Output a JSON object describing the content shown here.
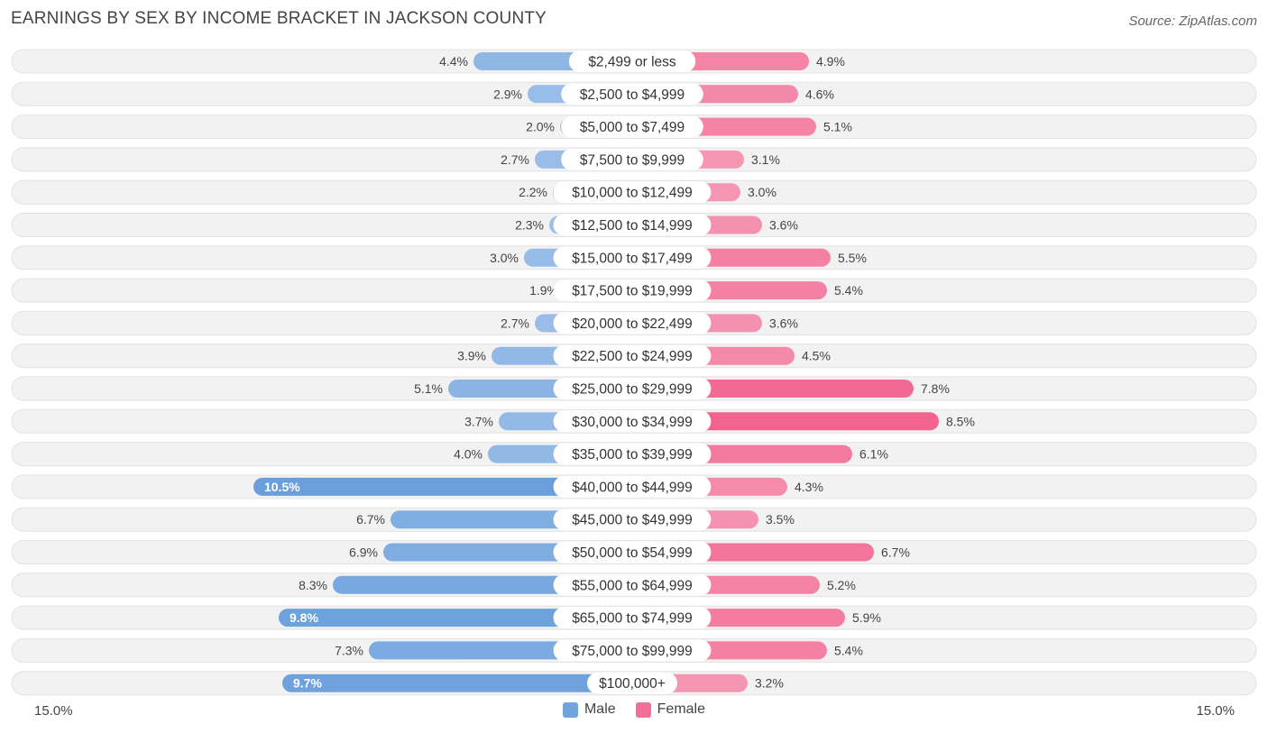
{
  "title": "EARNINGS BY SEX BY INCOME BRACKET IN JACKSON COUNTY",
  "source": "Source: ZipAtlas.com",
  "axis": {
    "left_label": "15.0%",
    "right_label": "15.0%"
  },
  "legend": {
    "male": {
      "label": "Male",
      "color": "#6fa4dd"
    },
    "female": {
      "label": "Female",
      "color": "#f07098"
    }
  },
  "chart_data": {
    "type": "bar",
    "orientation": "horizontal-diverging",
    "title": "EARNINGS BY SEX BY INCOME BRACKET IN JACKSON COUNTY",
    "xlim": [
      -15.0,
      15.0
    ],
    "unit": "%",
    "categories": [
      "$2,499 or less",
      "$2,500 to $4,999",
      "$5,000 to $7,499",
      "$7,500 to $9,999",
      "$10,000 to $12,499",
      "$12,500 to $14,999",
      "$15,000 to $17,499",
      "$17,500 to $19,999",
      "$20,000 to $22,499",
      "$22,500 to $24,999",
      "$25,000 to $29,999",
      "$30,000 to $34,999",
      "$35,000 to $39,999",
      "$40,000 to $44,999",
      "$45,000 to $49,999",
      "$50,000 to $54,999",
      "$55,000 to $64,999",
      "$65,000 to $74,999",
      "$75,000 to $99,999",
      "$100,000+"
    ],
    "series": [
      {
        "name": "Male",
        "values": [
          4.4,
          2.9,
          2.0,
          2.7,
          2.2,
          2.3,
          3.0,
          1.9,
          2.7,
          3.9,
          5.1,
          3.7,
          4.0,
          10.5,
          6.7,
          6.9,
          8.3,
          9.8,
          7.3,
          9.7
        ]
      },
      {
        "name": "Female",
        "values": [
          4.9,
          4.6,
          5.1,
          3.1,
          3.0,
          3.6,
          5.5,
          5.4,
          3.6,
          4.5,
          7.8,
          8.5,
          6.1,
          4.3,
          3.5,
          6.7,
          5.2,
          5.9,
          5.4,
          3.2
        ]
      }
    ],
    "value_labels": {
      "male": [
        "4.4%",
        "2.9%",
        "2.0%",
        "2.7%",
        "2.2%",
        "2.3%",
        "3.0%",
        "1.9%",
        "2.7%",
        "3.9%",
        "5.1%",
        "3.7%",
        "4.0%",
        "10.5%",
        "6.7%",
        "6.9%",
        "8.3%",
        "9.8%",
        "7.3%",
        "9.7%"
      ],
      "female": [
        "4.9%",
        "4.6%",
        "5.1%",
        "3.1%",
        "3.0%",
        "3.6%",
        "5.5%",
        "5.4%",
        "3.6%",
        "4.5%",
        "7.8%",
        "8.5%",
        "6.1%",
        "4.3%",
        "3.5%",
        "6.7%",
        "5.2%",
        "5.9%",
        "5.4%",
        "3.2%"
      ]
    }
  }
}
